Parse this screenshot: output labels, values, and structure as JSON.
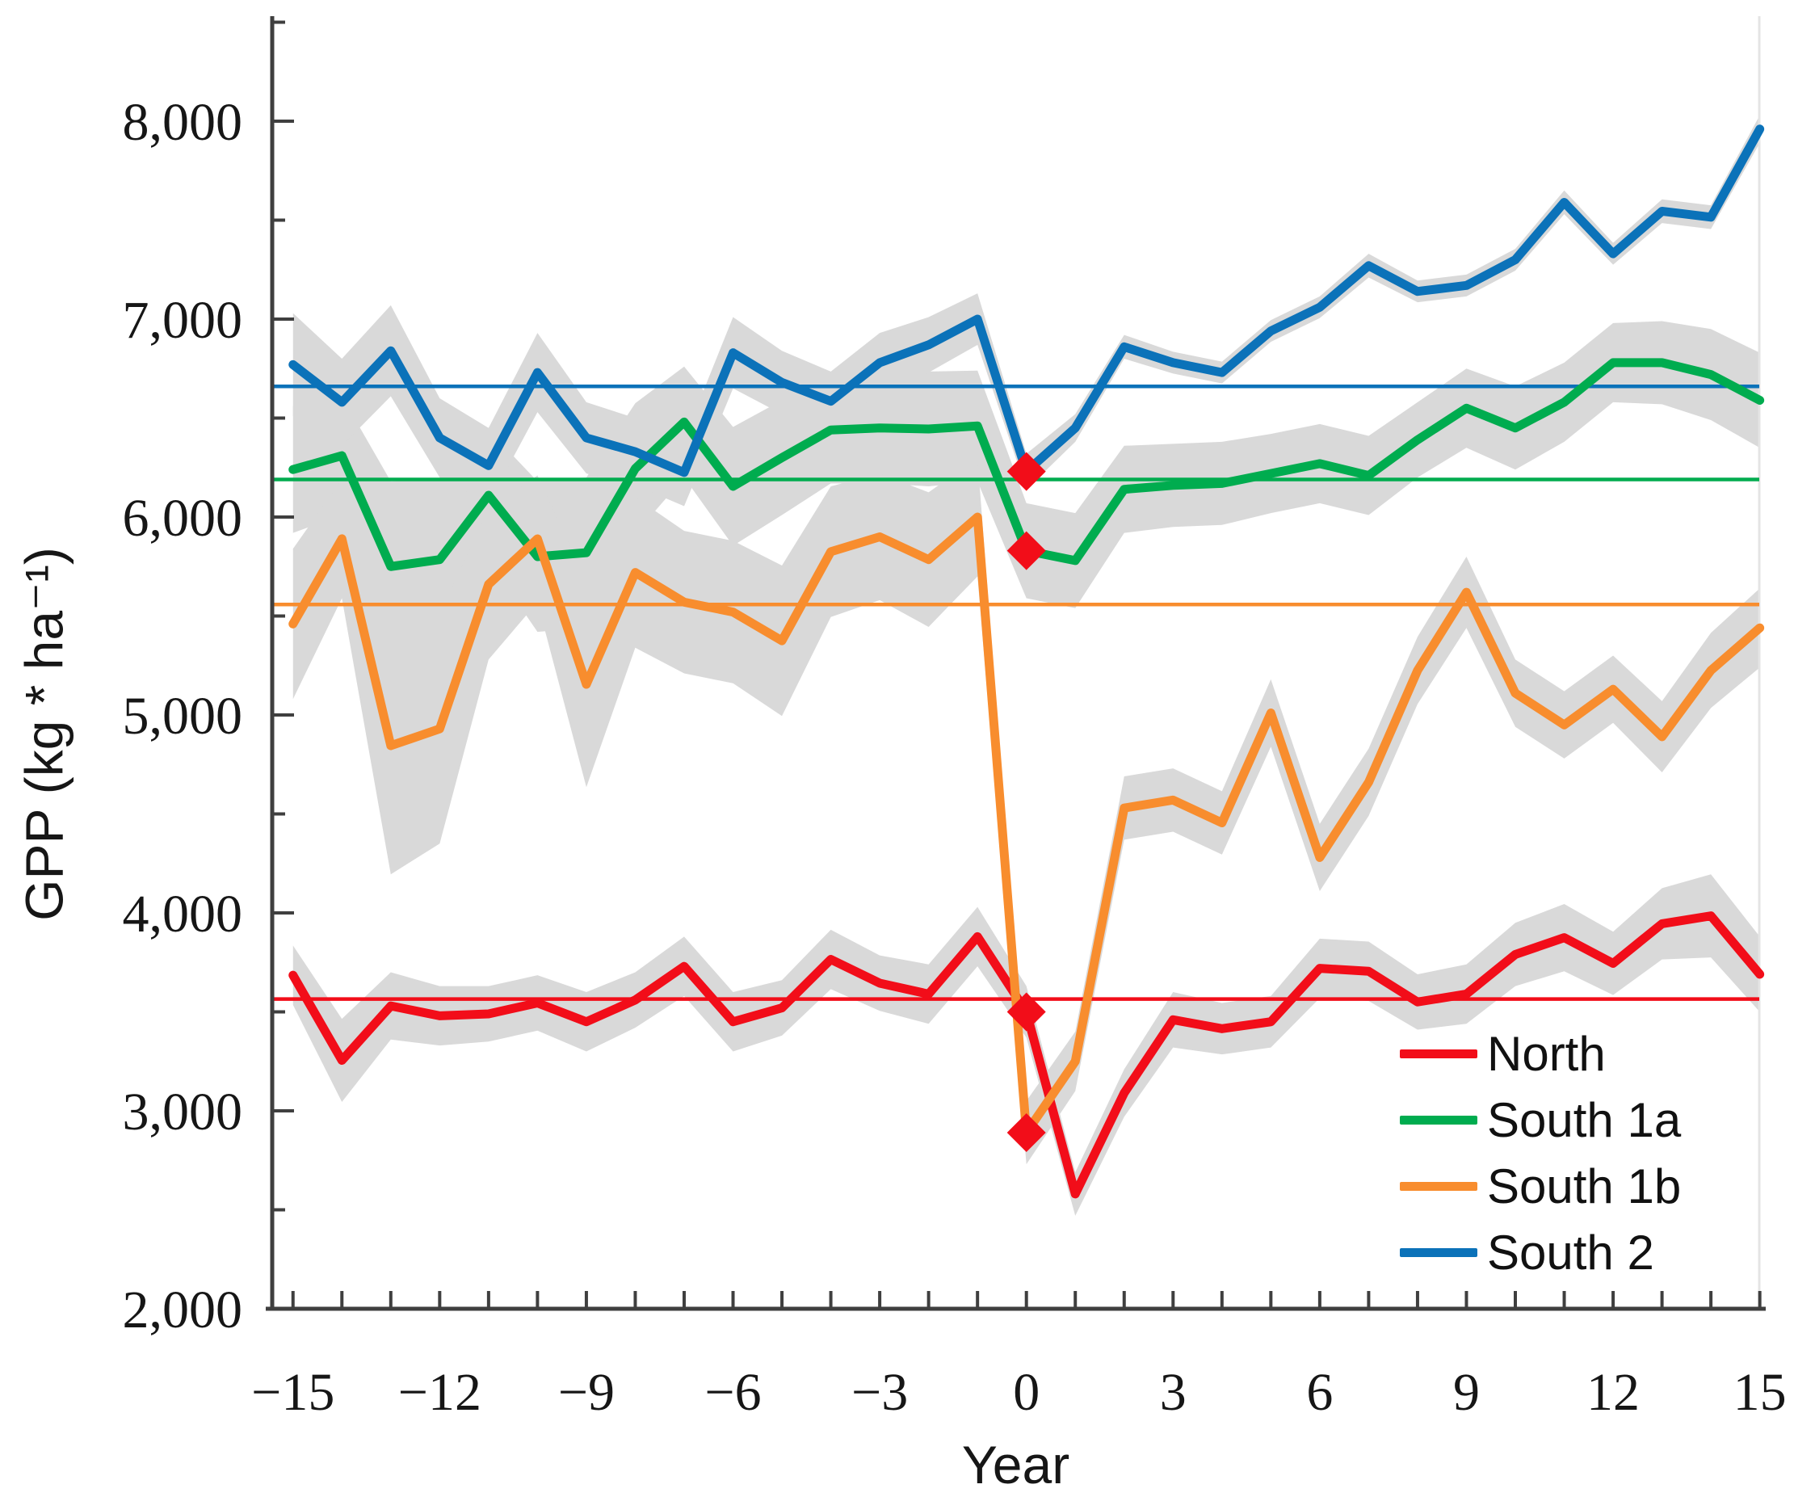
{
  "figure": {
    "xlabel": "Year",
    "ylabel": "GPP (kg * ha⁻¹)",
    "background": "#ffffff",
    "axis_color": "#3f3f3f",
    "band_color": "#d9d9d9",
    "plot_right_edge_color": "#e4e4e4",
    "marker_color": "#f20d19",
    "marker_shape": "diamond"
  },
  "legend": {
    "items": [
      {
        "label": "North",
        "color": "#f20d19"
      },
      {
        "label": "South 1a",
        "color": "#00ac4f"
      },
      {
        "label": "South 1b",
        "color": "#f88d2e"
      },
      {
        "label": "South 2",
        "color": "#0b72b9"
      }
    ]
  },
  "chart_data": {
    "type": "line",
    "title": "",
    "xlabel": "Year",
    "ylabel": "GPP (kg * ha⁻¹)",
    "xlim": [
      -15.43,
      15.0
    ],
    "ylim": [
      2000,
      8500
    ],
    "grid": false,
    "legend_position": "lower right",
    "x": [
      -15,
      -14,
      -13,
      -12,
      -11,
      -10,
      -9,
      -8,
      -7,
      -6,
      -5,
      -4,
      -3,
      -2,
      -1,
      0,
      1,
      2,
      3,
      4,
      5,
      6,
      7,
      8,
      9,
      10,
      11,
      12,
      13,
      14,
      15
    ],
    "x_tick_labels": [
      {
        "value": -15,
        "label": "−15"
      },
      {
        "value": -12,
        "label": "−12"
      },
      {
        "value": -9,
        "label": "−9"
      },
      {
        "value": -6,
        "label": "−6"
      },
      {
        "value": -3,
        "label": "−3"
      },
      {
        "value": 0,
        "label": "0"
      },
      {
        "value": 3,
        "label": "3"
      },
      {
        "value": 6,
        "label": "6"
      },
      {
        "value": 9,
        "label": "9"
      },
      {
        "value": 12,
        "label": "12"
      },
      {
        "value": 15,
        "label": "15"
      }
    ],
    "y_tick_labels": [
      {
        "value": 2000,
        "label": "2,000"
      },
      {
        "value": 3000,
        "label": "3,000"
      },
      {
        "value": 4000,
        "label": "4,000"
      },
      {
        "value": 5000,
        "label": "5,000"
      },
      {
        "value": 6000,
        "label": "6,000"
      },
      {
        "value": 7000,
        "label": "7,000"
      },
      {
        "value": 8000,
        "label": "8,000"
      }
    ],
    "y_minor_tick_step": 500,
    "x_minor_tick_step": 1,
    "event_marker_x": 0,
    "series": [
      {
        "name": "North",
        "color": "#f20d19",
        "mean": 3565,
        "marker_value_at_zero": 3500,
        "values": [
          3685,
          3255,
          3530,
          3480,
          3490,
          3545,
          3450,
          3560,
          3730,
          3450,
          3520,
          3765,
          3645,
          3590,
          3880,
          3500,
          2580,
          3090,
          3460,
          3415,
          3450,
          3720,
          3705,
          3550,
          3590,
          3790,
          3875,
          3745,
          3945,
          3985,
          3690
        ],
        "band_halfwidth": [
          150,
          210,
          170,
          150,
          140,
          140,
          150,
          140,
          150,
          150,
          140,
          150,
          140,
          150,
          150,
          130,
          110,
          120,
          140,
          130,
          130,
          150,
          150,
          140,
          150,
          160,
          170,
          160,
          180,
          210,
          190
        ]
      },
      {
        "name": "South 1a",
        "color": "#00ac4f",
        "mean": 6190,
        "marker_value_at_zero": 5830,
        "values": [
          6240,
          6310,
          5750,
          5785,
          6110,
          5800,
          5820,
          6245,
          6480,
          6155,
          6300,
          6440,
          6450,
          6445,
          6460,
          5830,
          5780,
          6140,
          6160,
          6170,
          6220,
          6270,
          6210,
          6390,
          6550,
          6450,
          6580,
          6780,
          6780,
          6720,
          6590
        ],
        "band_halfwidth": [
          320,
          300,
          430,
          410,
          330,
          380,
          380,
          330,
          280,
          300,
          290,
          270,
          280,
          290,
          280,
          240,
          240,
          220,
          210,
          210,
          200,
          200,
          200,
          190,
          200,
          210,
          200,
          200,
          210,
          230,
          240
        ]
      },
      {
        "name": "South 1b",
        "color": "#f88d2e",
        "mean": 5558,
        "marker_value_at_zero": 2890,
        "values": [
          5460,
          5890,
          4845,
          4930,
          5660,
          5890,
          5155,
          5720,
          5570,
          5520,
          5375,
          5825,
          5900,
          5785,
          6000,
          2890,
          3250,
          4530,
          4570,
          4455,
          5010,
          4280,
          4660,
          5225,
          5620,
          5110,
          4950,
          5130,
          4890,
          5225,
          5440
        ],
        "band_halfwidth": [
          380,
          300,
          650,
          580,
          380,
          320,
          520,
          380,
          360,
          360,
          380,
          330,
          320,
          340,
          300,
          160,
          150,
          160,
          160,
          160,
          170,
          170,
          170,
          170,
          180,
          170,
          170,
          170,
          180,
          190,
          200
        ]
      },
      {
        "name": "South 2",
        "color": "#0b72b9",
        "mean": 6660,
        "marker_value_at_zero": 6230,
        "values": [
          6770,
          6580,
          6840,
          6400,
          6260,
          6730,
          6400,
          6330,
          6225,
          6830,
          6680,
          6585,
          6780,
          6870,
          7000,
          6230,
          6450,
          6860,
          6780,
          6730,
          6940,
          7060,
          7270,
          7140,
          7170,
          7300,
          7590,
          7330,
          7545,
          7515,
          7960
        ],
        "band_halfwidth": [
          260,
          220,
          230,
          200,
          190,
          200,
          180,
          170,
          170,
          180,
          160,
          150,
          150,
          140,
          130,
          90,
          70,
          60,
          55,
          55,
          55,
          55,
          60,
          55,
          55,
          55,
          60,
          55,
          60,
          60,
          70
        ]
      }
    ]
  }
}
